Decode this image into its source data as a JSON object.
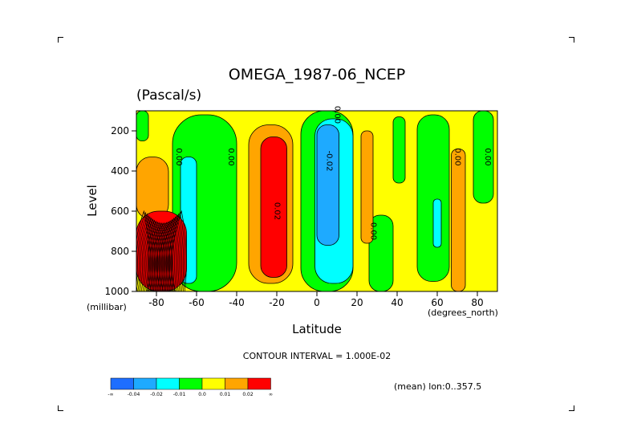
{
  "chart_data": {
    "type": "contour",
    "title": "OMEGA_1987-06_NCEP",
    "units": "(Pascal/s)",
    "xlabel": "Latitude",
    "ylabel": "Level",
    "y_unit_label": "(millibar)",
    "x_unit_label": "(degrees_north)",
    "xlim": [
      -90,
      90
    ],
    "ylim": [
      1000,
      100
    ],
    "x_ticks": [
      -80,
      -60,
      -40,
      -20,
      0,
      20,
      40,
      60,
      80
    ],
    "x_tick_labels": [
      "-80",
      "-60",
      "-40",
      "-20",
      "0",
      "20",
      "40",
      "60",
      "80"
    ],
    "y_ticks": [
      200,
      400,
      600,
      800,
      1000
    ],
    "y_tick_labels": [
      "200",
      "400",
      "600",
      "800",
      "1000"
    ],
    "contour_interval_text": "CONTOUR INTERVAL = 1.000E-02",
    "mean_note": "(mean) lon:0..357.5",
    "contour_labels": [
      {
        "text": "0.00",
        "lat": -70,
        "lev": 330
      },
      {
        "text": "0.00",
        "lat": -44,
        "lev": 330
      },
      {
        "text": "0.02",
        "lat": -21,
        "lev": 600
      },
      {
        "text": "0.00",
        "lat": 9,
        "lev": 120
      },
      {
        "text": "-0.02",
        "lat": 5,
        "lev": 350
      },
      {
        "text": "0.00",
        "lat": 27,
        "lev": 700
      },
      {
        "text": "0.00",
        "lat": 69,
        "lev": 330
      },
      {
        "text": "0.00",
        "lat": 84,
        "lev": 330
      }
    ],
    "colorbar": {
      "colors": [
        "#1e6eff",
        "#1eaaff",
        "#00ffff",
        "#00ff00",
        "#ffff00",
        "#ffa500",
        "#ff0000"
      ],
      "labels": [
        "-∞",
        "-0.04",
        "-0.02",
        "-0.01",
        "0.0",
        "0.01",
        "0.02",
        "∞"
      ]
    },
    "regions": [
      {
        "level": 0.0,
        "color": "#ffff00",
        "lat": [
          -90,
          90
        ],
        "lev": [
          100,
          1000
        ]
      },
      {
        "level": -0.01,
        "color": "#00ff00",
        "lat": [
          -90,
          -84
        ],
        "lev": [
          100,
          250
        ]
      },
      {
        "level": -0.01,
        "color": "#00ff00",
        "lat": [
          -72,
          -40
        ],
        "lev": [
          120,
          1000
        ]
      },
      {
        "level": -0.01,
        "color": "#00ff00",
        "lat": [
          -8,
          18
        ],
        "lev": [
          100,
          1000
        ]
      },
      {
        "level": -0.01,
        "color": "#00ff00",
        "lat": [
          26,
          38
        ],
        "lev": [
          620,
          1000
        ]
      },
      {
        "level": -0.01,
        "color": "#00ff00",
        "lat": [
          38,
          44
        ],
        "lev": [
          130,
          460
        ]
      },
      {
        "level": -0.01,
        "color": "#00ff00",
        "lat": [
          50,
          66
        ],
        "lev": [
          120,
          950
        ]
      },
      {
        "level": -0.01,
        "color": "#00ff00",
        "lat": [
          78,
          88
        ],
        "lev": [
          100,
          560
        ]
      },
      {
        "level": -0.02,
        "color": "#00ffff",
        "lat": [
          -68,
          -60
        ],
        "lev": [
          330,
          960
        ]
      },
      {
        "level": -0.02,
        "color": "#00ffff",
        "lat": [
          -1,
          18
        ],
        "lev": [
          140,
          960
        ]
      },
      {
        "level": -0.04,
        "color": "#1eaaff",
        "lat": [
          0,
          11
        ],
        "lev": [
          170,
          770
        ]
      },
      {
        "level": -0.02,
        "color": "#00ffff",
        "lat": [
          58,
          62
        ],
        "lev": [
          540,
          780
        ]
      },
      {
        "level": 0.01,
        "color": "#ffa500",
        "lat": [
          -90,
          -74
        ],
        "lev": [
          330,
          640
        ]
      },
      {
        "level": 0.01,
        "color": "#ffa500",
        "lat": [
          -34,
          -12
        ],
        "lev": [
          170,
          960
        ]
      },
      {
        "level": 0.01,
        "color": "#ffa500",
        "lat": [
          22,
          28
        ],
        "lev": [
          200,
          760
        ]
      },
      {
        "level": 0.01,
        "color": "#ffa500",
        "lat": [
          67,
          74
        ],
        "lev": [
          290,
          1000
        ]
      },
      {
        "level": 0.02,
        "color": "#ff0000",
        "lat": [
          -28,
          -15
        ],
        "lev": [
          230,
          930
        ]
      },
      {
        "level": 0.02,
        "color": "#ff0000",
        "lat": [
          -90,
          -65
        ],
        "lev": [
          600,
          1000
        ]
      }
    ],
    "dense_contours": {
      "lat": [
        -90,
        -65
      ],
      "lev": [
        600,
        1000
      ],
      "count": 26
    }
  }
}
